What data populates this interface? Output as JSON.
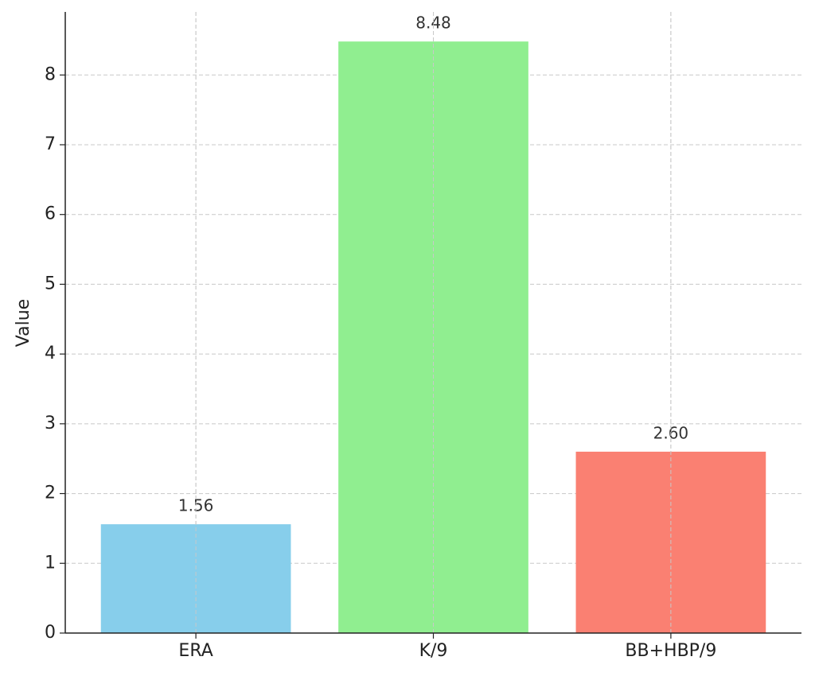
{
  "chart_data": {
    "type": "bar",
    "ylabel": "Value",
    "categories": [
      "ERA",
      "K/9",
      "BB+HBP/9"
    ],
    "values": [
      1.56,
      8.48,
      2.6
    ],
    "value_labels": [
      "1.56",
      "8.48",
      "2.60"
    ],
    "colors": [
      "#87ceeb",
      "#90ee90",
      "#fa8072"
    ],
    "ylim": [
      0,
      8.904
    ],
    "yticks": [
      0,
      1,
      2,
      3,
      4,
      5,
      6,
      7,
      8
    ],
    "grid": true
  }
}
